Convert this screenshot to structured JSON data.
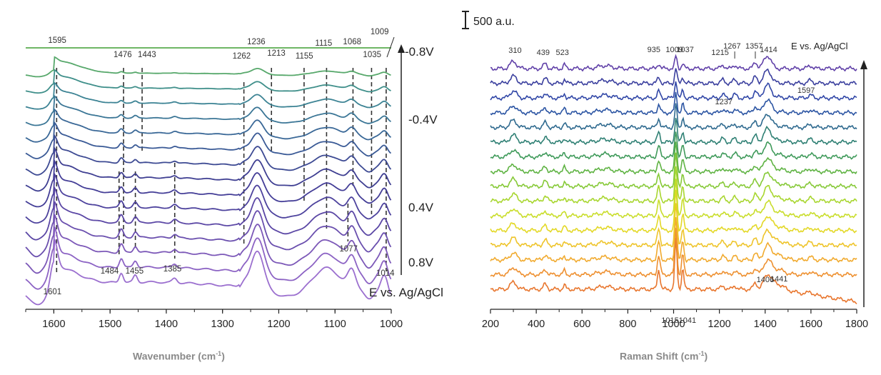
{
  "scale_bar_label": "500 a.u.",
  "chart_data": [
    {
      "type": "line",
      "panel": "left",
      "xlabel": "Wavenumber (cm",
      "xlabel_sup": "-1",
      "xlabel_tail": ")",
      "xlim": [
        1650,
        1000
      ],
      "x_reversed": true,
      "xticks": [
        1600,
        1500,
        1400,
        1300,
        1200,
        1100,
        1000
      ],
      "potential_axis_label": "E vs. Ag/AgCl",
      "potential_labels": [
        "-0.8V",
        "-0.4V",
        "0.4V",
        "0.8V"
      ],
      "series_count": 15,
      "colors": [
        "#9b6fcf",
        "#8c63c4",
        "#7c58b8",
        "#6a4fae",
        "#5b47a5",
        "#4d429d",
        "#443e97",
        "#3f3f92",
        "#3d4a93",
        "#3a5a96",
        "#3a6897",
        "#3b7696",
        "#3c8394",
        "#3f8f8a",
        "#57a86b"
      ],
      "peaks": [
        {
          "x": 1595,
          "label": "1595",
          "pos": "top"
        },
        {
          "x": 1476,
          "label": "1476",
          "pos": "top"
        },
        {
          "x": 1443,
          "label": "1443",
          "pos": "top"
        },
        {
          "x": 1262,
          "label": "1262",
          "pos": "top"
        },
        {
          "x": 1236,
          "label": "1236",
          "pos": "top"
        },
        {
          "x": 1213,
          "label": "1213",
          "pos": "top"
        },
        {
          "x": 1155,
          "label": "1155",
          "pos": "top"
        },
        {
          "x": 1115,
          "label": "1115",
          "pos": "top"
        },
        {
          "x": 1068,
          "label": "1068",
          "pos": "top"
        },
        {
          "x": 1035,
          "label": "1035",
          "pos": "top"
        },
        {
          "x": 1009,
          "label": "1009",
          "pos": "top"
        },
        {
          "x": 1601,
          "label": "1601",
          "pos": "bottom"
        },
        {
          "x": 1484,
          "label": "1484",
          "pos": "bottom"
        },
        {
          "x": 1455,
          "label": "1455",
          "pos": "bottom"
        },
        {
          "x": 1385,
          "label": "1385",
          "pos": "bottom"
        },
        {
          "x": 1077,
          "label": "1077",
          "pos": "bottom"
        },
        {
          "x": 1014,
          "label": "1014",
          "pos": "bottom"
        }
      ]
    },
    {
      "type": "line",
      "panel": "right",
      "xlabel": "Raman Shift (cm",
      "xlabel_sup": "-1",
      "xlabel_tail": ")",
      "xlim": [
        200,
        1800
      ],
      "xticks": [
        200,
        400,
        600,
        800,
        1000,
        1200,
        1400,
        1600,
        1800
      ],
      "potential_axis_label": "E vs. Ag/AgCl",
      "series_count": 16,
      "colors": [
        "#e8762e",
        "#ee9030",
        "#f1aa2e",
        "#eec42a",
        "#e3d826",
        "#c9dd2a",
        "#a8d62f",
        "#86c937",
        "#5fb343",
        "#3f9a5a",
        "#2f8074",
        "#2f6a8f",
        "#2c55a3",
        "#3147a7",
        "#3a3f9e",
        "#6040a8"
      ],
      "peaks": [
        {
          "x": 310,
          "label": "310",
          "pos": "top"
        },
        {
          "x": 439,
          "label": "439",
          "pos": "top"
        },
        {
          "x": 523,
          "label": "523",
          "pos": "top"
        },
        {
          "x": 935,
          "label": "935",
          "pos": "top"
        },
        {
          "x": 1009,
          "label": "1009",
          "pos": "top"
        },
        {
          "x": 1037,
          "label": "1037",
          "pos": "top"
        },
        {
          "x": 1215,
          "label": "1215",
          "pos": "top"
        },
        {
          "x": 1267,
          "label": "1267",
          "pos": "top"
        },
        {
          "x": 1357,
          "label": "1357",
          "pos": "top"
        },
        {
          "x": 1414,
          "label": "1414",
          "pos": "top"
        },
        {
          "x": 1597,
          "label": "1597",
          "pos": "mid"
        },
        {
          "x": 1237,
          "label": "1237",
          "pos": "mid"
        },
        {
          "x": 1406,
          "label": "1406",
          "pos": "low"
        },
        {
          "x": 1441,
          "label": "1441",
          "pos": "low"
        },
        {
          "x": 1015,
          "label": "1015",
          "pos": "bottom"
        },
        {
          "x": 1041,
          "label": "1041",
          "pos": "bottom"
        }
      ]
    }
  ]
}
